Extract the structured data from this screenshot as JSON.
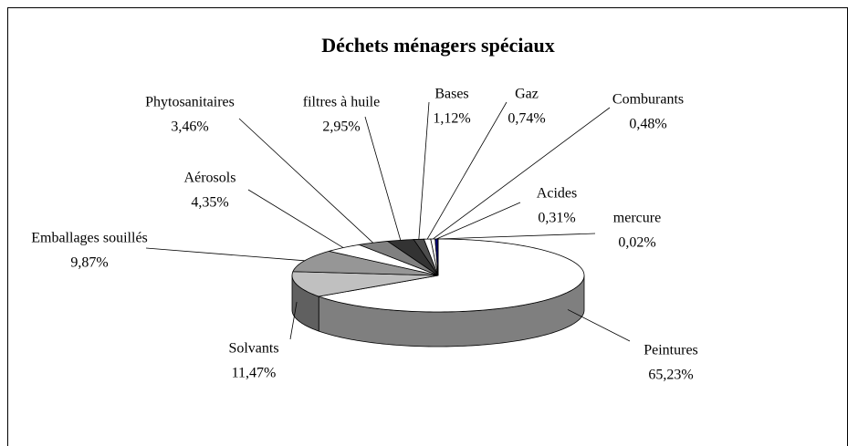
{
  "chart_data": {
    "type": "pie3d",
    "title": "Déchets ménagers spéciaux",
    "categories": [
      "Peintures",
      "Solvants",
      "Emballages souillés",
      "Aérosols",
      "Phytosanitaires",
      "filtres à huile",
      "Bases",
      "Gaz",
      "Comburants",
      "Acides",
      "mercure"
    ],
    "values": [
      65.23,
      11.47,
      9.87,
      4.35,
      3.46,
      2.95,
      1.12,
      0.74,
      0.48,
      0.31,
      0.02
    ],
    "value_labels": [
      "65,23%",
      "11,47%",
      "9,87%",
      "4,35%",
      "3,46%",
      "2,95%",
      "1,12%",
      "0,74%",
      "0,48%",
      "0,31%",
      "0,02%"
    ],
    "colors": [
      "#ffffff",
      "#c0c0c0",
      "#969696",
      "#ffffff",
      "#808080",
      "#333333",
      "#4d4d4d",
      "#ffffff",
      "#ffffff",
      "#000080",
      "#3333ff"
    ]
  }
}
